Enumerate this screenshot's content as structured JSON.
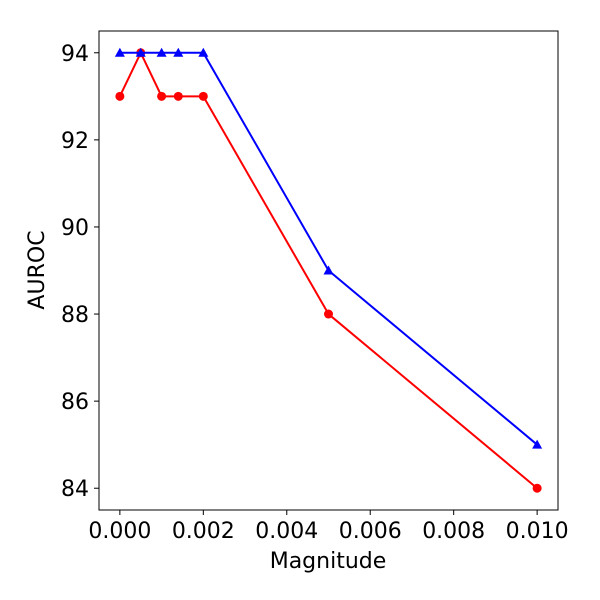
{
  "chart_data": {
    "type": "line",
    "title": "",
    "xlabel": "Magnitude",
    "ylabel": "AUROC",
    "xlim": [
      -0.0005,
      0.0105
    ],
    "ylim": [
      83.5,
      94.5
    ],
    "xticks": [
      0.0,
      0.002,
      0.004,
      0.006,
      0.008,
      0.01
    ],
    "xtick_labels": [
      "0.000",
      "0.002",
      "0.004",
      "0.006",
      "0.008",
      "0.010"
    ],
    "yticks": [
      84,
      86,
      88,
      90,
      92,
      94
    ],
    "ytick_labels": [
      "84",
      "86",
      "88",
      "90",
      "92",
      "94"
    ],
    "grid": false,
    "legend": "none",
    "series": [
      {
        "color": "#ff0000",
        "marker": "circle",
        "x": [
          0.0,
          0.0005,
          0.001,
          0.0014,
          0.002,
          0.005,
          0.01
        ],
        "y": [
          93,
          94,
          93,
          93,
          93,
          88,
          84
        ]
      },
      {
        "color": "#0000ff",
        "marker": "triangle",
        "x": [
          0.0,
          0.0005,
          0.001,
          0.0014,
          0.002,
          0.005,
          0.01
        ],
        "y": [
          94,
          94,
          94,
          94,
          94,
          89,
          85
        ]
      }
    ]
  }
}
